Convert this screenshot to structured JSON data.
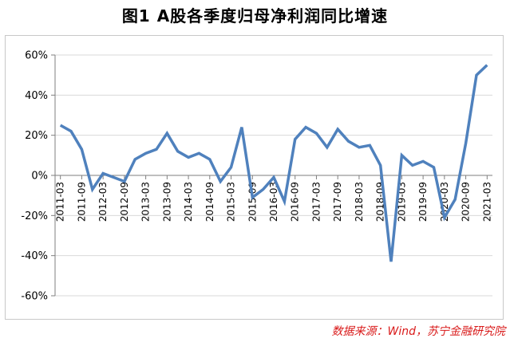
{
  "title": "图1 A股各季度归母净利润同比增速",
  "source": "数据来源：Wind，苏宁金融研究院",
  "colors": {
    "series": "#4f81bd",
    "grid": "#d9d9d9",
    "source": "#d91a1a"
  },
  "chart_data": {
    "type": "line",
    "title": "图1 A股各季度归母净利润同比增速",
    "xlabel": "",
    "ylabel": "",
    "ylim": [
      -0.6,
      0.6
    ],
    "yticks": [
      "60%",
      "40%",
      "20%",
      "0%",
      "-20%",
      "-40%",
      "-60%"
    ],
    "ytick_values": [
      0.6,
      0.4,
      0.2,
      0.0,
      -0.2,
      -0.4,
      -0.6
    ],
    "grid": true,
    "legend": "none",
    "x": [
      "2011-03",
      "2011-06",
      "2011-09",
      "2011-12",
      "2012-03",
      "2012-06",
      "2012-09",
      "2012-12",
      "2013-03",
      "2013-06",
      "2013-09",
      "2013-12",
      "2014-03",
      "2014-06",
      "2014-09",
      "2014-12",
      "2015-03",
      "2015-06",
      "2015-09",
      "2015-12",
      "2016-03",
      "2016-06",
      "2016-09",
      "2016-12",
      "2017-03",
      "2017-06",
      "2017-09",
      "2017-12",
      "2018-03",
      "2018-06",
      "2018-09",
      "2018-12",
      "2019-03",
      "2019-06",
      "2019-09",
      "2019-12",
      "2020-03",
      "2020-06",
      "2020-09",
      "2020-12",
      "2021-03"
    ],
    "xtick_labels": [
      "2011-03",
      "2011-09",
      "2012-03",
      "2012-09",
      "2013-03",
      "2013-09",
      "2014-03",
      "2014-09",
      "2015-03",
      "2015-09",
      "2016-03",
      "2016-09",
      "2017-03",
      "2017-09",
      "2018-03",
      "2018-09",
      "2019-03",
      "2019-09",
      "2020-03",
      "2020-09",
      "2021-03"
    ],
    "series": [
      {
        "name": "",
        "values": [
          0.25,
          0.22,
          0.13,
          -0.07,
          0.01,
          -0.01,
          -0.03,
          0.08,
          0.11,
          0.13,
          0.21,
          0.12,
          0.09,
          0.11,
          0.08,
          -0.03,
          0.04,
          0.24,
          -0.11,
          -0.07,
          -0.01,
          -0.13,
          0.18,
          0.24,
          0.21,
          0.14,
          0.23,
          0.17,
          0.14,
          0.15,
          0.05,
          -0.43,
          0.1,
          0.05,
          0.07,
          0.04,
          -0.21,
          -0.12,
          0.16,
          0.5,
          0.55
        ]
      }
    ]
  }
}
